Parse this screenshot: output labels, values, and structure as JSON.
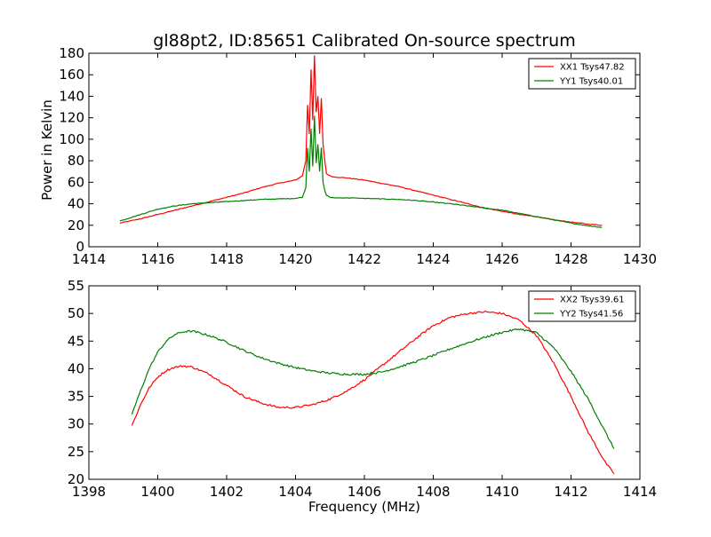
{
  "figure": {
    "title": "gl88pt2, ID:85651 Calibrated On-source spectrum"
  },
  "chart_data": [
    {
      "type": "line",
      "title": "gl88pt2, ID:85651 Calibrated On-source spectrum",
      "xlabel": "",
      "ylabel": "Power in Kelvin",
      "xlim": [
        1414,
        1430
      ],
      "ylim": [
        0,
        180
      ],
      "xticks": [
        1414,
        1416,
        1418,
        1420,
        1422,
        1424,
        1426,
        1428,
        1430
      ],
      "yticks": [
        0,
        20,
        40,
        60,
        80,
        100,
        120,
        140,
        160,
        180
      ],
      "xtick_labels": [
        "1414",
        "1416",
        "1418",
        "1420",
        "1422",
        "1424",
        "1426",
        "1428",
        "1430"
      ],
      "ytick_labels": [
        "0",
        "20",
        "40",
        "60",
        "80",
        "100",
        "120",
        "140",
        "160",
        "180"
      ],
      "grid": false,
      "legend": "top-right",
      "series": [
        {
          "name": "XX1 Tsys47.82",
          "color": "#ff0000",
          "x": [
            1414.9,
            1415.5,
            1416.0,
            1416.5,
            1417.0,
            1417.5,
            1418.0,
            1418.5,
            1419.0,
            1419.5,
            1420.0,
            1420.2,
            1420.3,
            1420.35,
            1420.4,
            1420.45,
            1420.5,
            1420.55,
            1420.6,
            1420.65,
            1420.7,
            1420.75,
            1420.8,
            1420.85,
            1420.9,
            1421.0,
            1421.1,
            1421.5,
            1422.0,
            1422.5,
            1423.0,
            1423.5,
            1424.0,
            1424.5,
            1425.0,
            1425.5,
            1426.0,
            1426.5,
            1427.0,
            1427.5,
            1428.0,
            1428.5,
            1428.9
          ],
          "values": [
            22,
            26,
            30,
            34,
            38,
            42,
            46,
            50,
            55,
            59,
            62,
            66,
            80,
            132,
            105,
            165,
            118,
            178,
            125,
            140,
            105,
            138,
            95,
            80,
            68,
            66,
            65,
            64,
            62,
            59,
            56,
            52,
            48,
            44,
            40,
            36,
            33,
            30,
            28,
            25,
            23,
            21,
            20
          ]
        },
        {
          "name": "YY1 Tsys40.01",
          "color": "#008000",
          "x": [
            1414.9,
            1415.5,
            1416.0,
            1416.5,
            1417.0,
            1417.5,
            1418.0,
            1418.5,
            1419.0,
            1419.5,
            1420.0,
            1420.2,
            1420.3,
            1420.35,
            1420.4,
            1420.45,
            1420.5,
            1420.55,
            1420.6,
            1420.65,
            1420.7,
            1420.75,
            1420.8,
            1420.85,
            1420.9,
            1421.0,
            1421.1,
            1421.5,
            1422.0,
            1422.5,
            1423.0,
            1423.5,
            1424.0,
            1424.5,
            1425.0,
            1425.5,
            1426.0,
            1426.5,
            1427.0,
            1427.5,
            1428.0,
            1428.5,
            1428.9
          ],
          "values": [
            24,
            30,
            35,
            38,
            40,
            41,
            42,
            43,
            44,
            44.5,
            45,
            46,
            55,
            92,
            70,
            110,
            75,
            122,
            78,
            95,
            70,
            92,
            60,
            52,
            48,
            46,
            45.5,
            45.5,
            45,
            44.5,
            44,
            43,
            41.5,
            40,
            38,
            36,
            34,
            31,
            28,
            25,
            22,
            19.5,
            18
          ]
        }
      ]
    },
    {
      "type": "line",
      "title": "",
      "xlabel": "Frequency (MHz)",
      "ylabel": "",
      "xlim": [
        1398,
        1414
      ],
      "ylim": [
        20,
        55
      ],
      "xticks": [
        1398,
        1400,
        1402,
        1404,
        1406,
        1408,
        1410,
        1412,
        1414
      ],
      "yticks": [
        20,
        25,
        30,
        35,
        40,
        45,
        50,
        55
      ],
      "xtick_labels": [
        "1398",
        "1400",
        "1402",
        "1404",
        "1406",
        "1408",
        "1410",
        "1412",
        "1414"
      ],
      "ytick_labels": [
        "20",
        "25",
        "30",
        "35",
        "40",
        "45",
        "50",
        "55"
      ],
      "grid": false,
      "legend": "top-right",
      "series": [
        {
          "name": "XX2 Tsys39.61",
          "color": "#ff0000",
          "x": [
            1399.25,
            1399.5,
            1399.75,
            1400.0,
            1400.25,
            1400.5,
            1400.75,
            1401.0,
            1401.5,
            1402.0,
            1402.5,
            1403.0,
            1403.5,
            1404.0,
            1404.5,
            1405.0,
            1405.5,
            1406.0,
            1406.5,
            1407.0,
            1407.5,
            1408.0,
            1408.5,
            1409.0,
            1409.5,
            1410.0,
            1410.5,
            1411.0,
            1411.5,
            1412.0,
            1412.5,
            1413.0,
            1413.25
          ],
          "values": [
            29.7,
            33.5,
            36.5,
            38.5,
            39.7,
            40.3,
            40.5,
            40.3,
            39.0,
            37.0,
            35.0,
            33.8,
            33.0,
            33.0,
            33.5,
            34.5,
            36.0,
            38.0,
            40.5,
            43.0,
            45.5,
            47.8,
            49.3,
            50.0,
            50.3,
            50.0,
            48.8,
            46.0,
            41.0,
            35.0,
            28.5,
            23.0,
            21.0
          ]
        },
        {
          "name": "YY2 Tsys41.56",
          "color": "#008000",
          "x": [
            1399.25,
            1399.5,
            1399.75,
            1400.0,
            1400.25,
            1400.5,
            1400.75,
            1401.0,
            1401.5,
            1402.0,
            1402.5,
            1403.0,
            1403.5,
            1404.0,
            1404.5,
            1405.0,
            1405.5,
            1406.0,
            1406.5,
            1407.0,
            1407.5,
            1408.0,
            1408.5,
            1409.0,
            1409.5,
            1410.0,
            1410.5,
            1411.0,
            1411.5,
            1412.0,
            1412.5,
            1413.0,
            1413.25
          ],
          "values": [
            31.8,
            36.0,
            40.0,
            43.0,
            45.0,
            46.2,
            46.7,
            46.8,
            46.0,
            44.8,
            43.3,
            42.0,
            41.0,
            40.2,
            39.6,
            39.2,
            39.0,
            39.0,
            39.4,
            40.3,
            41.3,
            42.4,
            43.6,
            44.7,
            45.7,
            46.6,
            47.2,
            46.5,
            43.8,
            39.5,
            34.5,
            28.5,
            25.5
          ]
        }
      ]
    }
  ]
}
